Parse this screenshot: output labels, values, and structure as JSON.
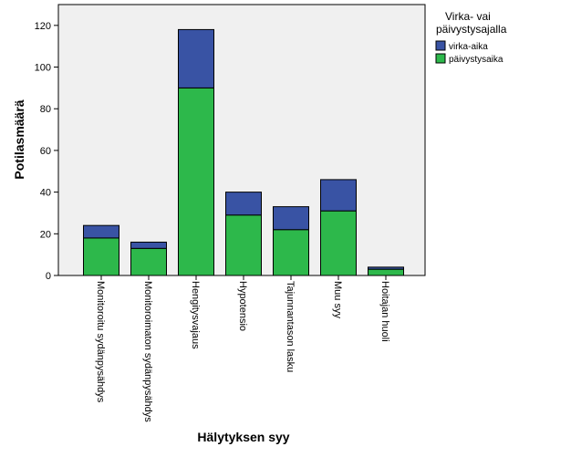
{
  "chart_data": {
    "type": "bar",
    "stacked": true,
    "xlabel": "Hälytyksen syy",
    "ylabel": "Potilasmäärä",
    "ylim": [
      0,
      130
    ],
    "yticks": [
      0,
      20,
      40,
      60,
      80,
      100,
      120
    ],
    "categories": [
      "Monitoroitu sydänpysähdys",
      "Monitoroimaton sydänpysähdys",
      "Hengitysvajaus",
      "Hypotensio",
      "Tajunnantason lasku",
      "Muu syy",
      "Hoitajan huoli"
    ],
    "series": [
      {
        "name": "päivystysaika",
        "color": "#2db84b",
        "values": [
          18,
          13,
          90,
          29,
          22,
          31,
          3
        ]
      },
      {
        "name": "virka-aika",
        "color": "#3953a4",
        "values": [
          6,
          3,
          28,
          11,
          11,
          15,
          1
        ]
      }
    ],
    "legend": {
      "title": "Virka- vai päivystysajalla",
      "title_lines": [
        "Virka- vai",
        "päivystysajalla"
      ],
      "order": [
        "virka-aika",
        "päivystysaika"
      ],
      "placement": "right"
    },
    "plot_background": "#f0f0f0",
    "grid": false
  }
}
